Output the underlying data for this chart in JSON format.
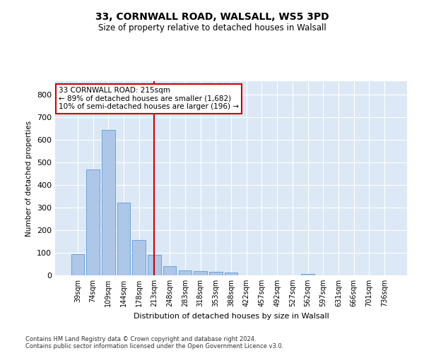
{
  "title1": "33, CORNWALL ROAD, WALSALL, WS5 3PD",
  "title2": "Size of property relative to detached houses in Walsall",
  "xlabel": "Distribution of detached houses by size in Walsall",
  "ylabel": "Number of detached properties",
  "categories": [
    "39sqm",
    "74sqm",
    "109sqm",
    "144sqm",
    "178sqm",
    "213sqm",
    "248sqm",
    "283sqm",
    "318sqm",
    "353sqm",
    "388sqm",
    "422sqm",
    "457sqm",
    "492sqm",
    "527sqm",
    "562sqm",
    "597sqm",
    "631sqm",
    "666sqm",
    "701sqm",
    "736sqm"
  ],
  "values": [
    95,
    468,
    645,
    323,
    157,
    92,
    40,
    22,
    18,
    17,
    13,
    0,
    0,
    0,
    0,
    7,
    0,
    0,
    0,
    0,
    0
  ],
  "bar_color": "#aec6e8",
  "bar_edge_color": "#5b9bd5",
  "highlight_index": 5,
  "highlight_line_color": "#cc0000",
  "annotation_text": "33 CORNWALL ROAD: 215sqm\n← 89% of detached houses are smaller (1,682)\n10% of semi-detached houses are larger (196) →",
  "annotation_box_color": "#ffffff",
  "annotation_box_edge_color": "#cc0000",
  "ylim": [
    0,
    860
  ],
  "yticks": [
    0,
    100,
    200,
    300,
    400,
    500,
    600,
    700,
    800
  ],
  "background_color": "#dce8f5",
  "footer_line1": "Contains HM Land Registry data © Crown copyright and database right 2024.",
  "footer_line2": "Contains public sector information licensed under the Open Government Licence v3.0."
}
